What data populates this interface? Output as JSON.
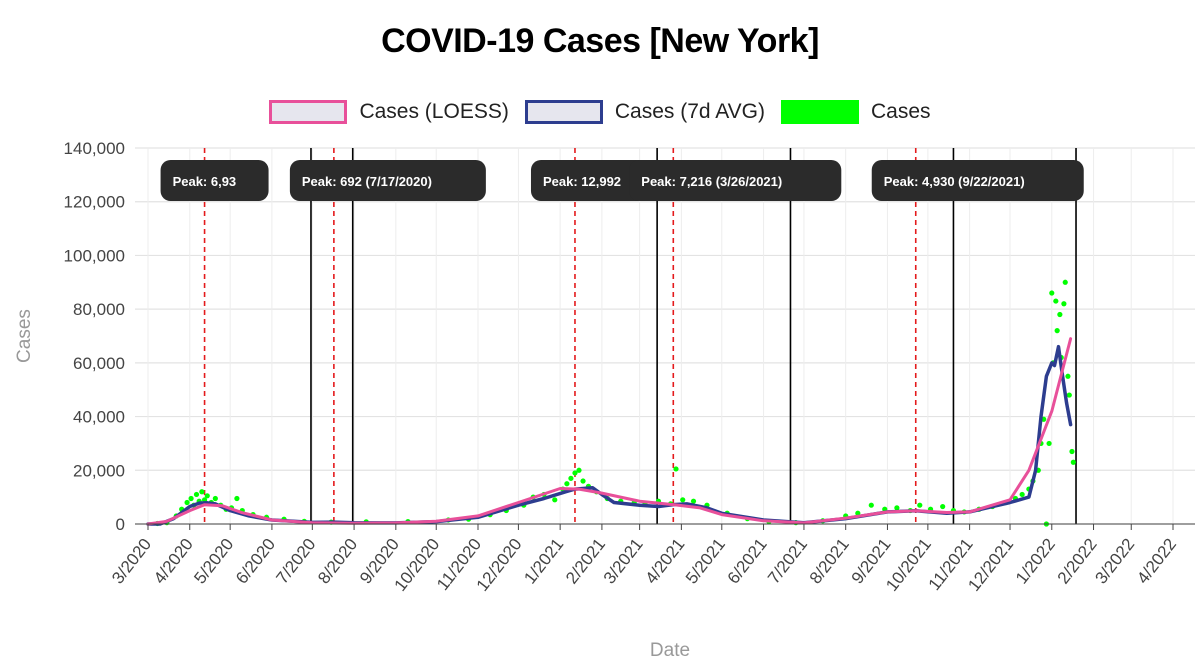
{
  "chart_data": {
    "type": "line",
    "title": "COVID-19 Cases [New York]",
    "xlabel": "Date",
    "ylabel": "Cases",
    "ylim": [
      0,
      140000
    ],
    "y_ticks": [
      0,
      20000,
      40000,
      60000,
      80000,
      100000,
      120000,
      140000
    ],
    "y_tick_labels": [
      "0",
      "20,000",
      "40,000",
      "60,000",
      "80,000",
      "100,000",
      "120,000",
      "140,000"
    ],
    "x_ticks": [
      "2020-03-01",
      "2020-04-01",
      "2020-05-01",
      "2020-06-01",
      "2020-07-01",
      "2020-08-01",
      "2020-09-01",
      "2020-10-01",
      "2020-11-01",
      "2020-12-01",
      "2021-01-01",
      "2021-02-01",
      "2021-03-01",
      "2021-04-01",
      "2021-05-01",
      "2021-06-01",
      "2021-07-01",
      "2021-08-01",
      "2021-09-01",
      "2021-10-01",
      "2021-11-01",
      "2021-12-01",
      "2022-01-01",
      "2022-02-01",
      "2022-03-01",
      "2022-04-01"
    ],
    "x_tick_labels": [
      "3/2020",
      "4/2020",
      "5/2020",
      "6/2020",
      "7/2020",
      "8/2020",
      "9/2020",
      "10/2020",
      "11/2020",
      "12/2020",
      "1/2021",
      "2/2021",
      "3/2021",
      "4/2021",
      "5/2021",
      "6/2021",
      "7/2021",
      "8/2021",
      "9/2021",
      "10/2021",
      "11/2021",
      "12/2021",
      "1/2022",
      "2/2022",
      "3/2022",
      "4/2022"
    ],
    "legend_position": "top",
    "grid": true,
    "series": [
      {
        "name": "Cases (LOESS)",
        "color": "#e8509a",
        "x": [
          "2020-03-01",
          "2020-03-15",
          "2020-04-01",
          "2020-04-12",
          "2020-04-25",
          "2020-05-10",
          "2020-06-01",
          "2020-07-01",
          "2020-08-01",
          "2020-09-01",
          "2020-10-01",
          "2020-11-01",
          "2020-12-01",
          "2021-01-01",
          "2021-01-15",
          "2021-02-01",
          "2021-03-01",
          "2021-03-26",
          "2021-04-15",
          "2021-05-01",
          "2021-06-01",
          "2021-07-01",
          "2021-08-01",
          "2021-09-01",
          "2021-09-22",
          "2021-10-15",
          "2021-11-01",
          "2021-12-01",
          "2021-12-15",
          "2022-01-01",
          "2022-01-15"
        ],
        "values": [
          0,
          1000,
          5000,
          7200,
          6800,
          4200,
          1500,
          500,
          300,
          400,
          1000,
          3000,
          8000,
          13200,
          13000,
          11500,
          8500,
          7216,
          6000,
          3500,
          1200,
          400,
          2200,
          4500,
          4930,
          4300,
          4500,
          9000,
          20000,
          42000,
          69000
        ]
      },
      {
        "name": "Cases (7d AVG)",
        "color": "#2d3d8f",
        "x": [
          "2020-03-01",
          "2020-03-10",
          "2020-03-20",
          "2020-04-01",
          "2020-04-08",
          "2020-04-14",
          "2020-04-20",
          "2020-05-01",
          "2020-05-15",
          "2020-06-01",
          "2020-07-01",
          "2020-07-17",
          "2020-08-01",
          "2020-09-01",
          "2020-10-01",
          "2020-11-01",
          "2020-12-01",
          "2020-12-20",
          "2021-01-05",
          "2021-01-12",
          "2021-01-25",
          "2021-02-01",
          "2021-02-10",
          "2021-03-01",
          "2021-03-15",
          "2021-03-26",
          "2021-04-05",
          "2021-04-20",
          "2021-05-01",
          "2021-06-01",
          "2021-07-01",
          "2021-08-01",
          "2021-09-01",
          "2021-09-22",
          "2021-10-15",
          "2021-11-01",
          "2021-12-01",
          "2021-12-15",
          "2021-12-20",
          "2021-12-24",
          "2021-12-28",
          "2022-01-01",
          "2022-01-03",
          "2022-01-06",
          "2022-01-09",
          "2022-01-12",
          "2022-01-15"
        ],
        "values": [
          0,
          0,
          2000,
          6500,
          7800,
          7900,
          7500,
          5000,
          3000,
          1500,
          600,
          692,
          500,
          400,
          900,
          2500,
          7000,
          9500,
          12000,
          13000,
          13500,
          11000,
          8000,
          7000,
          6500,
          7216,
          7500,
          6000,
          4000,
          1500,
          500,
          2000,
          4500,
          4930,
          4000,
          4500,
          8000,
          10000,
          20000,
          40000,
          55000,
          60000,
          59000,
          66000,
          55000,
          45000,
          37000
        ]
      },
      {
        "name": "Cases",
        "color": "#00ff00",
        "x": [
          "2020-03-08",
          "2020-03-15",
          "2020-03-22",
          "2020-03-26",
          "2020-03-30",
          "2020-04-02",
          "2020-04-04",
          "2020-04-06",
          "2020-04-08",
          "2020-04-10",
          "2020-04-12",
          "2020-04-14",
          "2020-04-17",
          "2020-04-20",
          "2020-04-24",
          "2020-04-28",
          "2020-05-02",
          "2020-05-06",
          "2020-05-10",
          "2020-05-18",
          "2020-05-28",
          "2020-06-10",
          "2020-06-25",
          "2020-07-15",
          "2020-08-10",
          "2020-09-10",
          "2020-10-10",
          "2020-10-25",
          "2020-11-10",
          "2020-11-22",
          "2020-12-05",
          "2020-12-12",
          "2020-12-20",
          "2020-12-28",
          "2021-01-03",
          "2021-01-06",
          "2021-01-09",
          "2021-01-12",
          "2021-01-15",
          "2021-01-18",
          "2021-01-22",
          "2021-01-28",
          "2021-02-05",
          "2021-02-15",
          "2021-02-25",
          "2021-03-05",
          "2021-03-15",
          "2021-03-24",
          "2021-03-28",
          "2021-04-02",
          "2021-04-10",
          "2021-04-20",
          "2021-05-05",
          "2021-05-20",
          "2021-06-05",
          "2021-06-25",
          "2021-07-15",
          "2021-08-01",
          "2021-08-10",
          "2021-08-20",
          "2021-08-30",
          "2021-09-08",
          "2021-09-18",
          "2021-09-25",
          "2021-10-03",
          "2021-10-12",
          "2021-10-20",
          "2021-10-28",
          "2021-11-08",
          "2021-11-18",
          "2021-11-28",
          "2021-12-05",
          "2021-12-10",
          "2021-12-15",
          "2021-12-18",
          "2021-12-22",
          "2021-12-24",
          "2021-12-26",
          "2021-12-28",
          "2021-12-30",
          "2022-01-01",
          "2022-01-02",
          "2022-01-04",
          "2022-01-05",
          "2022-01-07",
          "2022-01-08",
          "2022-01-10",
          "2022-01-11",
          "2022-01-13",
          "2022-01-14",
          "2022-01-16",
          "2022-01-17"
        ],
        "values": [
          200,
          500,
          3000,
          5500,
          8000,
          9500,
          7000,
          11000,
          8500,
          12000,
          9000,
          10500,
          8000,
          9500,
          7000,
          5500,
          6000,
          9500,
          5000,
          3500,
          2500,
          1800,
          1000,
          700,
          800,
          900,
          1500,
          1800,
          3500,
          5000,
          7000,
          10000,
          11000,
          9000,
          13000,
          15000,
          17000,
          19000,
          20000,
          16000,
          14000,
          12000,
          9500,
          8500,
          8000,
          7500,
          8500,
          7500,
          20500,
          9000,
          8500,
          7000,
          4000,
          2000,
          900,
          500,
          1200,
          3000,
          4000,
          7000,
          5500,
          6000,
          5000,
          7000,
          5500,
          6500,
          5000,
          4500,
          5500,
          6500,
          8000,
          9500,
          11000,
          13000,
          16000,
          20000,
          30000,
          39000,
          0,
          30000,
          86000,
          60000,
          83000,
          72000,
          78000,
          62000,
          82000,
          90000,
          55000,
          48000,
          27000,
          23000
        ]
      }
    ],
    "vlines_red_dashed": [
      "2020-04-12",
      "2020-07-17",
      "2021-01-12",
      "2021-03-26",
      "2021-09-22"
    ],
    "vlines_black": [
      "2020-06-30",
      "2020-07-31",
      "2021-03-14",
      "2021-06-21",
      "2021-10-20",
      "2022-01-19"
    ],
    "callouts": [
      {
        "label": "Peak: 6,93",
        "x": "2020-04-12"
      },
      {
        "label": "Peak: 692 (7/17/2020)",
        "x": "2020-07-17"
      },
      {
        "label": "Peak: 12,992",
        "x": "2021-01-12"
      },
      {
        "label": "Peak: 7,216 (3/26/2021)",
        "x": "2021-03-26"
      },
      {
        "label": "Peak: 4,930 (9/22/2021)",
        "x": "2021-09-22"
      }
    ]
  }
}
